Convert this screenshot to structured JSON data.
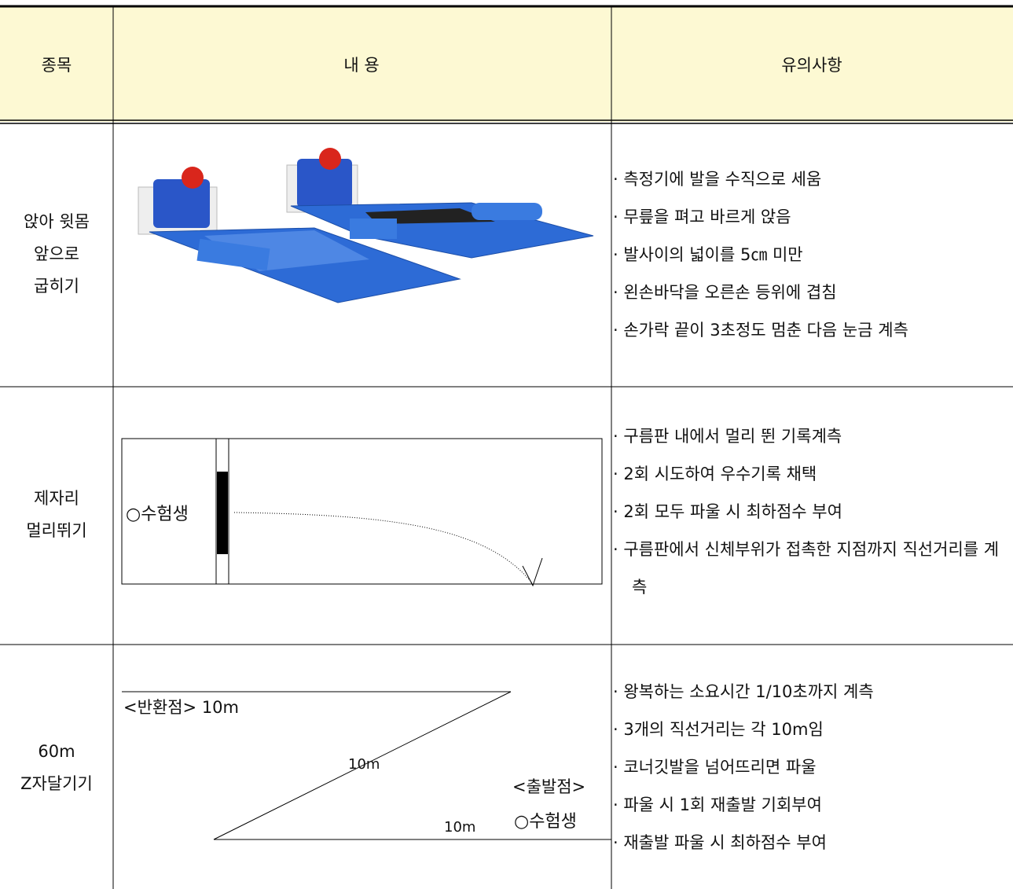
{
  "table": {
    "header": [
      "종목",
      "내 용",
      "유의사항"
    ],
    "rows": [
      {
        "item": [
          "앉아 윗몸",
          "앞으로",
          "굽히기"
        ],
        "notes": [
          "· 측정기에 발을 수직으로 세움",
          "· 무릎을 펴고 바르게 앉음",
          "· 발사이의 넓이를 5㎝ 미만",
          "· 왼손바닥을 오른손 등위에 겹침",
          "· 손가락 끝이 3초정도 멈춘 다음 눈금 계측"
        ]
      },
      {
        "item": [
          "제자리",
          "멀리뛰기"
        ],
        "diagram": {
          "label": "○수험생"
        },
        "notes": [
          "· 구름판 내에서 멀리 뛴 기록계측",
          "· 2회 시도하여 우수기록 채택",
          "· 2회 모두 파울 시 최하점수 부여",
          "· 구름판에서 신체부위가 접촉한 지점까지 직선거리를 계측"
        ]
      },
      {
        "item": [
          "60m",
          "Z자달기기"
        ],
        "diagram": {
          "turn_label": "<반환점> 10m",
          "diagonal_label": "10m",
          "start_label": "<출발점>",
          "runner_label": "○수험생",
          "bottom_label": "10m"
        },
        "notes": [
          "· 왕복하는 소요시간 1/10초까지 계측",
          "· 3개의 직선거리는 각 10m임",
          "· 코너깃발을 넘어뜨리면 파울",
          "· 파울 시 1회 재출발 기회부여",
          "· 재출발 파울 시 최하점수 부여"
        ]
      }
    ]
  }
}
